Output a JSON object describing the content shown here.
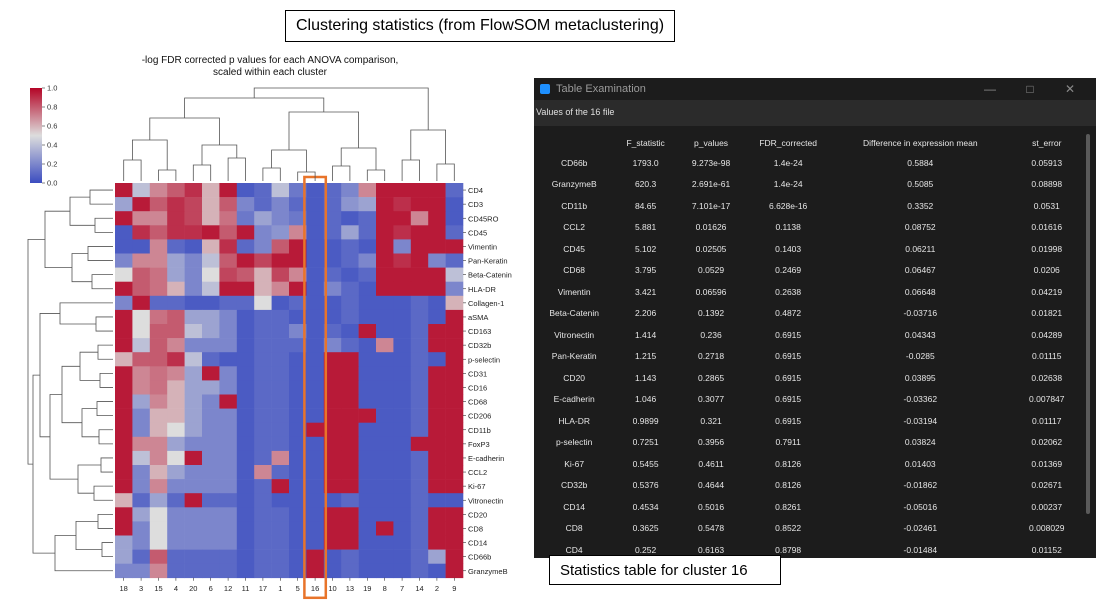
{
  "banner": {
    "text": "Clustering statistics (from FlowSOM metaclustering)"
  },
  "chart_data": {
    "type": "heatmap",
    "title_lines": [
      "-log FDR corrected p values for each ANOVA comparison,",
      "scaled within each cluster"
    ],
    "columns": [
      "18",
      "3",
      "15",
      "4",
      "20",
      "6",
      "12",
      "11",
      "17",
      "1",
      "5",
      "16",
      "10",
      "13",
      "19",
      "8",
      "7",
      "14",
      "2",
      "9"
    ],
    "rows": [
      "CD4",
      "CD3",
      "CD45RO",
      "CD45",
      "Vimentin",
      "Pan-Keratin",
      "Beta-Catenin",
      "HLA-DR",
      "Collagen-1",
      "aSMA",
      "CD163",
      "CD32b",
      "p-selectin",
      "CD31",
      "CD16",
      "CD68",
      "CD206",
      "CD11b",
      "FoxP3",
      "E-cadherin",
      "CCL2",
      "Ki-67",
      "Vitronectin",
      "CD20",
      "CD8",
      "CD14",
      "CD66b",
      "GranzymeB"
    ],
    "colorbar": {
      "min": 0.0,
      "max": 1.0,
      "ticks": [
        "1.0",
        "0.8",
        "0.6",
        "0.4",
        "0.2",
        "0.0"
      ],
      "low_color": "#3b4cc0",
      "mid_color": "#dddddd",
      "high_color": "#b40426"
    },
    "highlight_column": "16",
    "highlight_color": "#e8742a",
    "values": [
      [
        0.95,
        0.4,
        0.7,
        0.8,
        0.9,
        0.6,
        0.95,
        0.05,
        0.1,
        0.4,
        0.15,
        0.05,
        0.1,
        0.2,
        0.7,
        0.95,
        0.95,
        0.95,
        0.95,
        0.1
      ],
      [
        0.3,
        0.95,
        0.8,
        0.9,
        0.85,
        0.6,
        0.8,
        0.2,
        0.1,
        0.2,
        0.1,
        0.05,
        0.1,
        0.25,
        0.3,
        0.95,
        0.9,
        0.95,
        0.95,
        0.05
      ],
      [
        0.95,
        0.7,
        0.7,
        0.9,
        0.85,
        0.6,
        0.75,
        0.15,
        0.3,
        0.2,
        0.15,
        0.05,
        0.1,
        0.05,
        0.1,
        0.95,
        0.95,
        0.7,
        0.95,
        0.05
      ],
      [
        0.05,
        0.9,
        0.8,
        0.9,
        0.9,
        0.95,
        0.8,
        0.95,
        0.2,
        0.25,
        0.7,
        0.05,
        0.1,
        0.3,
        0.1,
        0.95,
        0.9,
        0.95,
        0.95,
        0.1
      ],
      [
        0.05,
        0.05,
        0.7,
        0.1,
        0.05,
        0.6,
        0.9,
        0.1,
        0.2,
        0.8,
        0.95,
        0.05,
        0.05,
        0.1,
        0.05,
        0.95,
        0.2,
        0.95,
        0.95,
        0.95
      ],
      [
        0.2,
        0.7,
        0.7,
        0.3,
        0.2,
        0.4,
        0.8,
        0.95,
        0.85,
        0.95,
        0.95,
        0.05,
        0.05,
        0.1,
        0.2,
        0.95,
        0.9,
        0.95,
        0.2,
        0.1
      ],
      [
        0.5,
        0.8,
        0.75,
        0.3,
        0.2,
        0.5,
        0.85,
        0.8,
        0.6,
        0.85,
        0.7,
        0.05,
        0.1,
        0.05,
        0.1,
        0.95,
        0.95,
        0.95,
        0.95,
        0.4
      ],
      [
        0.95,
        0.8,
        0.75,
        0.6,
        0.2,
        0.4,
        0.95,
        0.95,
        0.6,
        0.7,
        0.95,
        0.05,
        0.2,
        0.1,
        0.05,
        0.95,
        0.95,
        0.95,
        0.95,
        0.2
      ],
      [
        0.2,
        0.95,
        0.1,
        0.1,
        0.05,
        0.05,
        0.1,
        0.1,
        0.5,
        0.05,
        0.1,
        0.05,
        0.05,
        0.1,
        0.05,
        0.05,
        0.05,
        0.1,
        0.05,
        0.6
      ],
      [
        0.95,
        0.5,
        0.75,
        0.8,
        0.3,
        0.3,
        0.2,
        0.05,
        0.1,
        0.1,
        0.05,
        0.05,
        0.05,
        0.1,
        0.05,
        0.05,
        0.05,
        0.1,
        0.05,
        0.95
      ],
      [
        0.95,
        0.5,
        0.8,
        0.8,
        0.4,
        0.3,
        0.2,
        0.05,
        0.1,
        0.1,
        0.2,
        0.05,
        0.1,
        0.05,
        0.95,
        0.05,
        0.05,
        0.1,
        0.95,
        0.95
      ],
      [
        0.95,
        0.4,
        0.8,
        0.7,
        0.2,
        0.2,
        0.2,
        0.05,
        0.1,
        0.1,
        0.1,
        0.05,
        0.2,
        0.1,
        0.05,
        0.7,
        0.05,
        0.1,
        0.95,
        0.95
      ],
      [
        0.6,
        0.8,
        0.8,
        0.9,
        0.4,
        0.1,
        0.05,
        0.05,
        0.1,
        0.1,
        0.05,
        0.05,
        0.95,
        0.95,
        0.05,
        0.05,
        0.05,
        0.1,
        0.05,
        0.95
      ],
      [
        0.95,
        0.7,
        0.75,
        0.7,
        0.3,
        0.95,
        0.2,
        0.05,
        0.1,
        0.1,
        0.05,
        0.05,
        0.95,
        0.95,
        0.05,
        0.05,
        0.05,
        0.1,
        0.95,
        0.95
      ],
      [
        0.95,
        0.7,
        0.75,
        0.6,
        0.3,
        0.3,
        0.2,
        0.05,
        0.1,
        0.1,
        0.05,
        0.05,
        0.95,
        0.95,
        0.05,
        0.05,
        0.05,
        0.1,
        0.95,
        0.95
      ],
      [
        0.95,
        0.3,
        0.7,
        0.6,
        0.3,
        0.2,
        0.95,
        0.05,
        0.1,
        0.1,
        0.05,
        0.05,
        0.95,
        0.95,
        0.05,
        0.05,
        0.05,
        0.1,
        0.95,
        0.95
      ],
      [
        0.95,
        0.2,
        0.6,
        0.6,
        0.3,
        0.2,
        0.2,
        0.05,
        0.1,
        0.1,
        0.05,
        0.05,
        0.95,
        0.95,
        0.95,
        0.05,
        0.05,
        0.1,
        0.95,
        0.95
      ],
      [
        0.95,
        0.2,
        0.6,
        0.5,
        0.3,
        0.2,
        0.2,
        0.05,
        0.1,
        0.1,
        0.05,
        0.95,
        0.95,
        0.95,
        0.05,
        0.05,
        0.05,
        0.1,
        0.95,
        0.95
      ],
      [
        0.95,
        0.7,
        0.7,
        0.3,
        0.2,
        0.2,
        0.2,
        0.05,
        0.1,
        0.1,
        0.05,
        0.05,
        0.95,
        0.95,
        0.05,
        0.05,
        0.05,
        0.95,
        0.95,
        0.95
      ],
      [
        0.95,
        0.4,
        0.7,
        0.5,
        0.95,
        0.2,
        0.2,
        0.05,
        0.1,
        0.7,
        0.05,
        0.05,
        0.95,
        0.95,
        0.05,
        0.05,
        0.05,
        0.1,
        0.95,
        0.95
      ],
      [
        0.95,
        0.2,
        0.6,
        0.3,
        0.2,
        0.2,
        0.2,
        0.05,
        0.7,
        0.1,
        0.05,
        0.05,
        0.95,
        0.95,
        0.05,
        0.05,
        0.05,
        0.1,
        0.95,
        0.95
      ],
      [
        0.95,
        0.2,
        0.7,
        0.2,
        0.2,
        0.2,
        0.2,
        0.05,
        0.1,
        0.95,
        0.05,
        0.05,
        0.95,
        0.95,
        0.05,
        0.05,
        0.05,
        0.1,
        0.95,
        0.95
      ],
      [
        0.6,
        0.1,
        0.3,
        0.1,
        0.95,
        0.1,
        0.1,
        0.05,
        0.1,
        0.05,
        0.05,
        0.05,
        0.05,
        0.1,
        0.05,
        0.05,
        0.05,
        0.1,
        0.05,
        0.05
      ],
      [
        0.95,
        0.3,
        0.5,
        0.2,
        0.2,
        0.2,
        0.2,
        0.05,
        0.1,
        0.1,
        0.05,
        0.05,
        0.95,
        0.95,
        0.05,
        0.05,
        0.05,
        0.1,
        0.95,
        0.95
      ],
      [
        0.95,
        0.2,
        0.5,
        0.2,
        0.2,
        0.2,
        0.2,
        0.05,
        0.1,
        0.1,
        0.05,
        0.05,
        0.95,
        0.95,
        0.05,
        0.95,
        0.05,
        0.1,
        0.95,
        0.95
      ],
      [
        0.3,
        0.2,
        0.5,
        0.2,
        0.2,
        0.2,
        0.2,
        0.05,
        0.1,
        0.1,
        0.05,
        0.05,
        0.95,
        0.95,
        0.05,
        0.05,
        0.05,
        0.1,
        0.95,
        0.95
      ],
      [
        0.3,
        0.1,
        0.8,
        0.1,
        0.1,
        0.1,
        0.1,
        0.05,
        0.1,
        0.1,
        0.05,
        0.95,
        0.05,
        0.1,
        0.05,
        0.05,
        0.05,
        0.1,
        0.3,
        0.95
      ],
      [
        0.2,
        0.2,
        0.7,
        0.1,
        0.1,
        0.1,
        0.1,
        0.05,
        0.1,
        0.1,
        0.05,
        0.95,
        0.05,
        0.1,
        0.05,
        0.05,
        0.05,
        0.1,
        0.05,
        0.95
      ]
    ]
  },
  "table_window": {
    "title": "Table Examination",
    "subtitle": "Values of the 16 file",
    "columns": [
      "F_statistic",
      "p_values",
      "FDR_corrected",
      "Difference in expression mean",
      "st_error"
    ],
    "rows": [
      [
        "CD66b",
        "1793.0",
        "9.273e-98",
        "1.4e-24",
        "0.5884",
        "0.05913"
      ],
      [
        "GranzymeB",
        "620.3",
        "2.691e-61",
        "1.4e-24",
        "0.5085",
        "0.08898"
      ],
      [
        "CD11b",
        "84.65",
        "7.101e-17",
        "6.628e-16",
        "0.3352",
        "0.0531"
      ],
      [
        "CCL2",
        "5.881",
        "0.01626",
        "0.1138",
        "0.08752",
        "0.01616"
      ],
      [
        "CD45",
        "5.102",
        "0.02505",
        "0.1403",
        "0.06211",
        "0.01998"
      ],
      [
        "CD68",
        "3.795",
        "0.0529",
        "0.2469",
        "0.06467",
        "0.0206"
      ],
      [
        "Vimentin",
        "3.421",
        "0.06596",
        "0.2638",
        "0.06648",
        "0.04219"
      ],
      [
        "Beta-Catenin",
        "2.206",
        "0.1392",
        "0.4872",
        "-0.03716",
        "0.01821"
      ],
      [
        "Vitronectin",
        "1.414",
        "0.236",
        "0.6915",
        "0.04343",
        "0.04289"
      ],
      [
        "Pan-Keratin",
        "1.215",
        "0.2718",
        "0.6915",
        "-0.0285",
        "0.01115"
      ],
      [
        "CD20",
        "1.143",
        "0.2865",
        "0.6915",
        "0.03895",
        "0.02638"
      ],
      [
        "E-cadherin",
        "1.046",
        "0.3077",
        "0.6915",
        "-0.03362",
        "0.007847"
      ],
      [
        "HLA-DR",
        "0.9899",
        "0.321",
        "0.6915",
        "-0.03194",
        "0.01117"
      ],
      [
        "p-selectin",
        "0.7251",
        "0.3956",
        "0.7911",
        "0.03824",
        "0.02062"
      ],
      [
        "Ki-67",
        "0.5455",
        "0.4611",
        "0.8126",
        "0.01403",
        "0.01369"
      ],
      [
        "CD32b",
        "0.5376",
        "0.4644",
        "0.8126",
        "-0.01862",
        "0.02671"
      ],
      [
        "CD14",
        "0.4534",
        "0.5016",
        "0.8261",
        "-0.05016",
        "0.00237"
      ],
      [
        "CD8",
        "0.3625",
        "0.5478",
        "0.8522",
        "-0.02461",
        "0.008029"
      ],
      [
        "CD4",
        "0.252",
        "0.6163",
        "0.8798",
        "-0.01484",
        "0.01152"
      ]
    ]
  },
  "caption": {
    "text": "Statistics table for cluster 16"
  }
}
